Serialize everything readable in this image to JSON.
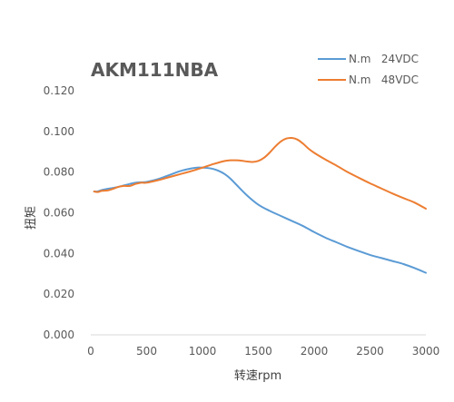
{
  "chart_data": {
    "type": "line",
    "title": "AKM111NBA",
    "xlabel": "转速rpm",
    "ylabel": "扭矩",
    "xlim": [
      0,
      3000
    ],
    "ylim": [
      0,
      0.12
    ],
    "x_ticks": [
      "0",
      "500",
      "1000",
      "1500",
      "2000",
      "2500",
      "3000"
    ],
    "y_ticks": [
      "0.000",
      "0.020",
      "0.040",
      "0.060",
      "0.080",
      "0.100",
      "0.120"
    ],
    "grid": false,
    "legend_position": "top-right",
    "series": [
      {
        "name": "N.m   24VDC",
        "color": "#5B9BD5",
        "x": [
          30,
          60,
          100,
          150,
          200,
          250,
          300,
          350,
          400,
          450,
          500,
          600,
          700,
          800,
          900,
          950,
          1000,
          1050,
          1100,
          1150,
          1200,
          1250,
          1300,
          1400,
          1500,
          1600,
          1700,
          1800,
          1900,
          2000,
          2100,
          2200,
          2300,
          2400,
          2500,
          2600,
          2700,
          2800,
          2900,
          3000
        ],
        "values": [
          0.0705,
          0.0705,
          0.0712,
          0.0718,
          0.0722,
          0.0728,
          0.0735,
          0.0742,
          0.0748,
          0.075,
          0.0752,
          0.0765,
          0.0785,
          0.0805,
          0.0818,
          0.0822,
          0.0822,
          0.082,
          0.0815,
          0.0805,
          0.079,
          0.0768,
          0.074,
          0.0685,
          0.064,
          0.061,
          0.0585,
          0.056,
          0.0535,
          0.0505,
          0.0478,
          0.0455,
          0.0432,
          0.0412,
          0.0393,
          0.0378,
          0.0363,
          0.0348,
          0.0328,
          0.0305
        ]
      },
      {
        "name": "N.m   48VDC",
        "color": "#ED7D31",
        "x": [
          30,
          60,
          100,
          150,
          200,
          250,
          300,
          350,
          400,
          450,
          500,
          600,
          700,
          800,
          900,
          1000,
          1100,
          1200,
          1250,
          1300,
          1350,
          1400,
          1450,
          1500,
          1550,
          1600,
          1650,
          1700,
          1750,
          1800,
          1850,
          1900,
          1950,
          2000,
          2100,
          2200,
          2300,
          2400,
          2500,
          2600,
          2700,
          2800,
          2900,
          3000
        ],
        "values": [
          0.0705,
          0.0702,
          0.0708,
          0.071,
          0.0718,
          0.0728,
          0.0732,
          0.0732,
          0.0742,
          0.0748,
          0.0748,
          0.076,
          0.0775,
          0.079,
          0.0805,
          0.0822,
          0.084,
          0.0855,
          0.0858,
          0.0858,
          0.0856,
          0.0852,
          0.085,
          0.0855,
          0.087,
          0.0895,
          0.0925,
          0.095,
          0.0965,
          0.0968,
          0.096,
          0.094,
          0.0915,
          0.0895,
          0.0862,
          0.0832,
          0.08,
          0.0772,
          0.0745,
          0.072,
          0.0695,
          0.0672,
          0.065,
          0.062
        ]
      }
    ]
  }
}
